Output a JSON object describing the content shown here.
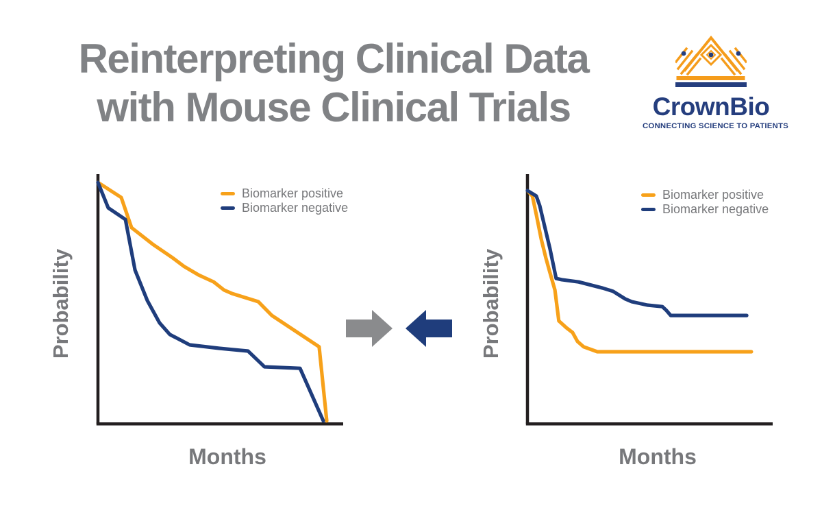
{
  "title": {
    "line1": "Reinterpreting Clinical Data",
    "line2": "with Mouse Clinical Trials"
  },
  "logo": {
    "name": "CrownBio",
    "tagline": "CONNECTING SCIENCE TO PATIENTS"
  },
  "colors": {
    "title_gray": "#808285",
    "label_gray": "#77787B",
    "axis_black": "#231F20",
    "biomarker_positive_orange": "#F7A11A",
    "biomarker_negative_navy": "#1F3D7C",
    "arrow_gray": "#8A8B8D",
    "arrow_navy": "#1F3D7C",
    "logo_orange": "#F59C1B",
    "logo_navy": "#253E7E"
  },
  "arrows": {
    "left_arrow_direction": "right",
    "right_arrow_direction": "left"
  },
  "chart_data": [
    {
      "type": "line",
      "position": "left",
      "description": "Clinical data survival curves; both curves decline to zero, biomarker positive crosses above negative",
      "xlabel": "Months",
      "ylabel": "Probability",
      "x_axis": {
        "label": "Months",
        "ticks": [],
        "range_fraction": [
          0,
          1
        ]
      },
      "y_axis": {
        "label": "Probability",
        "ticks": [],
        "range": [
          0,
          1
        ]
      },
      "grid": false,
      "legend_position": "top-right-inside",
      "series": [
        {
          "name": "Biomarker positive",
          "color": "#F7A11A",
          "points": [
            [
              0.0,
              0.972
            ],
            [
              0.095,
              0.911
            ],
            [
              0.137,
              0.789
            ],
            [
              0.223,
              0.722
            ],
            [
              0.304,
              0.667
            ],
            [
              0.352,
              0.631
            ],
            [
              0.411,
              0.597
            ],
            [
              0.472,
              0.569
            ],
            [
              0.514,
              0.536
            ],
            [
              0.547,
              0.522
            ],
            [
              0.654,
              0.489
            ],
            [
              0.709,
              0.433
            ],
            [
              0.902,
              0.306
            ],
            [
              0.933,
              0.006
            ]
          ]
        },
        {
          "name": "Biomarker negative",
          "color": "#1F3D7C",
          "points": [
            [
              0.0,
              0.972
            ],
            [
              0.042,
              0.869
            ],
            [
              0.112,
              0.822
            ],
            [
              0.151,
              0.617
            ],
            [
              0.201,
              0.494
            ],
            [
              0.251,
              0.403
            ],
            [
              0.293,
              0.356
            ],
            [
              0.374,
              0.314
            ],
            [
              0.494,
              0.3
            ],
            [
              0.612,
              0.289
            ],
            [
              0.679,
              0.225
            ],
            [
              0.824,
              0.219
            ],
            [
              0.919,
              0.006
            ]
          ]
        }
      ]
    },
    {
      "type": "line",
      "position": "right",
      "description": "Mouse clinical trial survival curves; both curves drop steeply then plateau, biomarker negative stays above positive",
      "xlabel": "Months",
      "ylabel": "Probability",
      "x_axis": {
        "label": "Months",
        "ticks": [],
        "range_fraction": [
          0,
          1
        ]
      },
      "y_axis": {
        "label": "Probability",
        "ticks": [],
        "range": [
          0,
          1
        ]
      },
      "grid": false,
      "legend_position": "top-right-inside",
      "series": [
        {
          "name": "Biomarker positive",
          "color": "#F7A11A",
          "points": [
            [
              0.0,
              0.939
            ],
            [
              0.02,
              0.917
            ],
            [
              0.036,
              0.842
            ],
            [
              0.056,
              0.744
            ],
            [
              0.075,
              0.667
            ],
            [
              0.092,
              0.606
            ],
            [
              0.112,
              0.536
            ],
            [
              0.128,
              0.411
            ],
            [
              0.159,
              0.383
            ],
            [
              0.184,
              0.364
            ],
            [
              0.204,
              0.328
            ],
            [
              0.229,
              0.306
            ],
            [
              0.285,
              0.286
            ],
            [
              0.913,
              0.286
            ]
          ]
        },
        {
          "name": "Biomarker negative",
          "color": "#1F3D7C",
          "points": [
            [
              0.0,
              0.939
            ],
            [
              0.036,
              0.917
            ],
            [
              0.05,
              0.878
            ],
            [
              0.092,
              0.703
            ],
            [
              0.117,
              0.583
            ],
            [
              0.14,
              0.578
            ],
            [
              0.209,
              0.569
            ],
            [
              0.307,
              0.544
            ],
            [
              0.349,
              0.531
            ],
            [
              0.399,
              0.5
            ],
            [
              0.425,
              0.489
            ],
            [
              0.489,
              0.475
            ],
            [
              0.55,
              0.469
            ],
            [
              0.567,
              0.453
            ],
            [
              0.584,
              0.433
            ],
            [
              0.894,
              0.433
            ]
          ]
        }
      ]
    }
  ]
}
